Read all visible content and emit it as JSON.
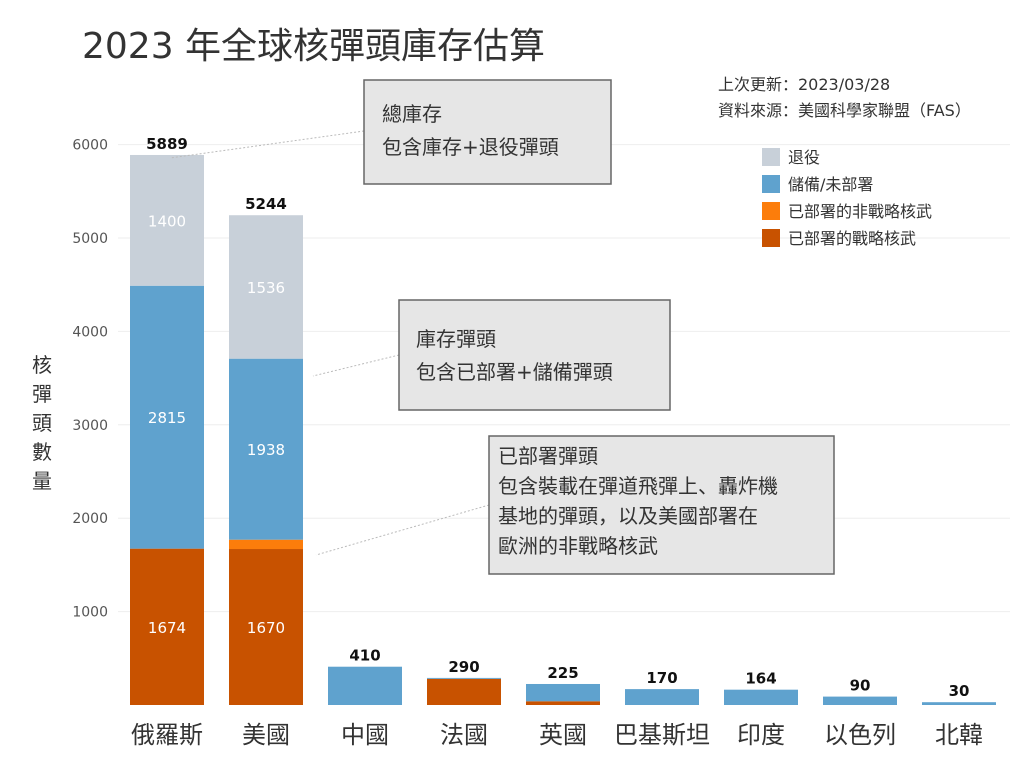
{
  "chart_data": {
    "type": "bar",
    "stacked": true,
    "title": "2023 年全球核彈頭庫存估算",
    "meta": {
      "updated": "上次更新：2023/03/28",
      "source": "資料來源：美國科學家聯盟（FAS）"
    },
    "ylabel": "核彈頭數量",
    "ylim": [
      0,
      6300
    ],
    "yticks": [
      1000,
      2000,
      3000,
      4000,
      5000,
      6000
    ],
    "grid": true,
    "legend_position": "top-right",
    "categories": [
      "俄羅斯",
      "美國",
      "中國",
      "法國",
      "英國",
      "巴基斯坦",
      "印度",
      "以色列",
      "北韓"
    ],
    "totals": [
      5889,
      5244,
      410,
      290,
      225,
      170,
      164,
      90,
      30
    ],
    "series": [
      {
        "name": "已部署的戰略核武",
        "color": "#c85200",
        "values": [
          1674,
          1670,
          0,
          280,
          40,
          0,
          0,
          0,
          0
        ]
      },
      {
        "name": "已部署的非戰略核武",
        "color": "#fc7d0b",
        "values": [
          0,
          100,
          0,
          0,
          0,
          0,
          0,
          0,
          0
        ]
      },
      {
        "name": "儲備/未部署",
        "color": "#5fa2ce",
        "values": [
          2815,
          1938,
          410,
          10,
          185,
          170,
          164,
          90,
          30
        ]
      },
      {
        "name": "退役",
        "color": "#c8d0d9",
        "values": [
          1400,
          1536,
          0,
          0,
          0,
          0,
          0,
          0,
          0
        ]
      }
    ],
    "segment_labels": {
      "0": {
        "0": "1674",
        "2": "2815",
        "3": "1400"
      },
      "1": {
        "0": "1670",
        "2": "1938",
        "3": "1536"
      }
    },
    "legend_order": [
      3,
      2,
      1,
      0
    ],
    "annotations": [
      {
        "lines": [
          "總庫存",
          "包含庫存+退役彈頭"
        ]
      },
      {
        "lines": [
          "庫存彈頭",
          "包含已部署+儲備彈頭"
        ]
      },
      {
        "lines": [
          "已部署彈頭",
          "包含裝載在彈道飛彈上、轟炸機",
          "基地的彈頭，以及美國部署在",
          "歐洲的非戰略核武"
        ]
      }
    ]
  }
}
